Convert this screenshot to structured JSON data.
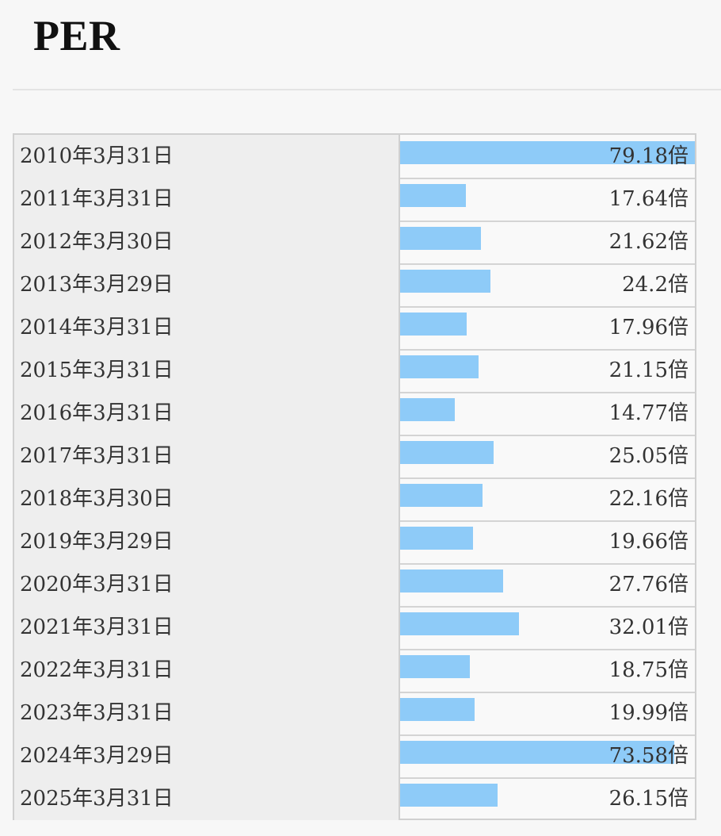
{
  "page": {
    "title": "PER"
  },
  "colors": {
    "bar": "#8ecbf8",
    "date_cell_bg": "#eeeeee",
    "border": "#d0d0d0"
  },
  "chart_data": {
    "type": "bar",
    "orientation": "horizontal",
    "title": "PER",
    "value_suffix": "倍",
    "xlim": [
      0,
      79.18
    ],
    "categories": [
      "2010年3月31日",
      "2011年3月31日",
      "2012年3月30日",
      "2013年3月29日",
      "2014年3月31日",
      "2015年3月31日",
      "2016年3月31日",
      "2017年3月31日",
      "2018年3月30日",
      "2019年3月29日",
      "2020年3月31日",
      "2021年3月31日",
      "2022年3月31日",
      "2023年3月31日",
      "2024年3月29日",
      "2025年3月31日"
    ],
    "values": [
      79.18,
      17.64,
      21.62,
      24.2,
      17.96,
      21.15,
      14.77,
      25.05,
      22.16,
      19.66,
      27.76,
      32.01,
      18.75,
      19.99,
      73.58,
      26.15
    ],
    "value_labels": [
      "79.18倍",
      "17.64倍",
      "21.62倍",
      "24.2倍",
      "17.96倍",
      "21.15倍",
      "14.77倍",
      "25.05倍",
      "22.16倍",
      "19.66倍",
      "27.76倍",
      "32.01倍",
      "18.75倍",
      "19.99倍",
      "73.58倍",
      "26.15倍"
    ]
  }
}
